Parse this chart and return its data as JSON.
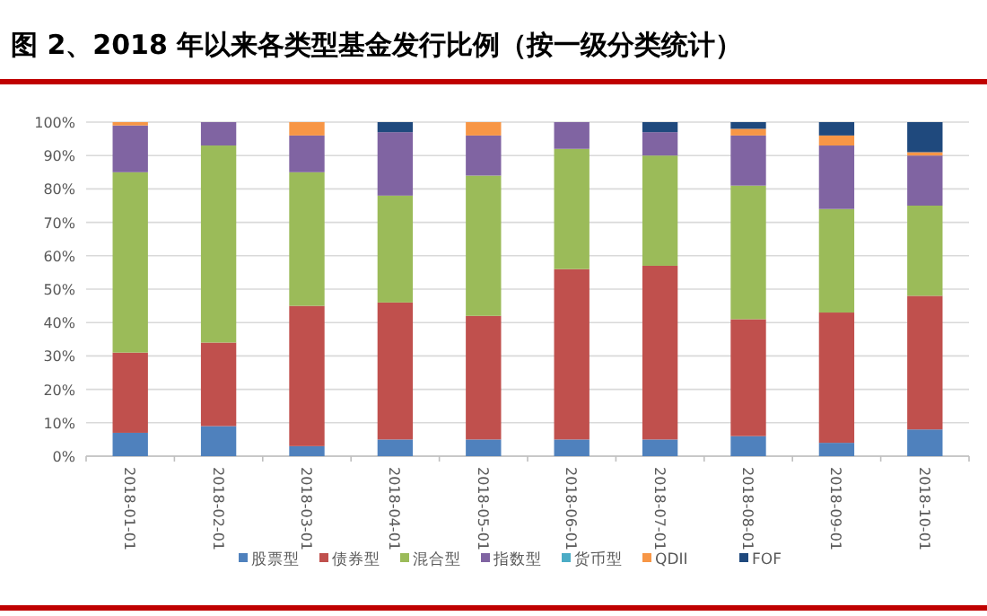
{
  "chart_data": {
    "type": "bar",
    "stacked": true,
    "title": "图 2、2018 年以来各类型基金发行比例（按一级分类统计）",
    "categories": [
      "2018-01-01",
      "2018-02-01",
      "2018-03-01",
      "2018-04-01",
      "2018-05-01",
      "2018-06-01",
      "2018-07-01",
      "2018-08-01",
      "2018-09-01",
      "2018-10-01"
    ],
    "series": [
      {
        "name": "股票型",
        "color": "#4f81bd",
        "values": [
          7,
          9,
          3,
          5,
          5,
          5,
          5,
          6,
          4,
          8
        ]
      },
      {
        "name": "债券型",
        "color": "#c0504d",
        "values": [
          24,
          25,
          42,
          41,
          37,
          51,
          52,
          35,
          39,
          40
        ]
      },
      {
        "name": "混合型",
        "color": "#9bbb59",
        "values": [
          54,
          59,
          40,
          32,
          42,
          36,
          33,
          40,
          31,
          27
        ]
      },
      {
        "name": "指数型",
        "color": "#8064a2",
        "values": [
          14,
          7,
          11,
          19,
          12,
          8,
          7,
          15,
          19,
          15
        ]
      },
      {
        "name": "货币型",
        "color": "#4bacc6",
        "values": [
          0,
          0,
          0,
          0,
          0,
          0,
          0,
          0,
          0,
          0
        ]
      },
      {
        "name": "QDII",
        "color": "#f79646",
        "values": [
          1,
          0,
          4,
          0,
          4,
          0,
          0,
          2,
          3,
          1
        ]
      },
      {
        "name": "FOF",
        "color": "#1f497d",
        "values": [
          0,
          0,
          0,
          3,
          0,
          0,
          3,
          2,
          4,
          9
        ]
      }
    ],
    "ylim": [
      0,
      100
    ],
    "yticks": [
      {
        "value": 0,
        "label": "0%"
      },
      {
        "value": 10,
        "label": "10%"
      },
      {
        "value": 20,
        "label": "20%"
      },
      {
        "value": 30,
        "label": "30%"
      },
      {
        "value": 40,
        "label": "40%"
      },
      {
        "value": 50,
        "label": "50%"
      },
      {
        "value": 60,
        "label": "60%"
      },
      {
        "value": 70,
        "label": "70%"
      },
      {
        "value": 80,
        "label": "80%"
      },
      {
        "value": 90,
        "label": "90%"
      },
      {
        "value": 100,
        "label": "100%"
      }
    ],
    "grid": "y",
    "legend": "bottom"
  }
}
